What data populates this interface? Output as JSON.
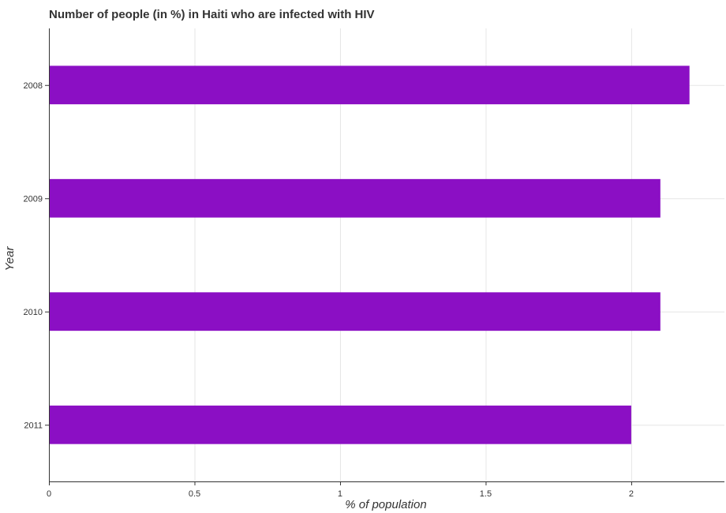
{
  "chart_data": {
    "type": "bar",
    "orientation": "horizontal",
    "title": "Number of people (in %) in Haiti who are infected with HIV",
    "xlabel": "% of population",
    "ylabel": "Year",
    "categories": [
      "2008",
      "2009",
      "2010",
      "2011"
    ],
    "values": [
      2.2,
      2.1,
      2.1,
      2.0
    ],
    "xlim": [
      0,
      2.32
    ],
    "xticks": [
      0,
      0.5,
      1,
      1.5,
      2
    ],
    "xtick_labels": [
      "0",
      "0.5",
      "1",
      "1.5",
      "2"
    ],
    "grid": true,
    "bar_color": "#8b0fc4"
  }
}
